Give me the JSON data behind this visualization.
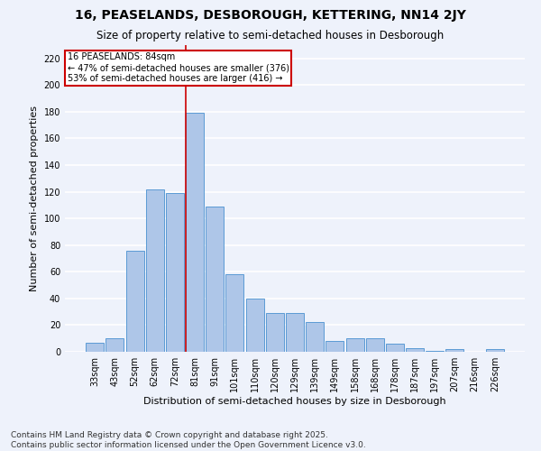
{
  "title": "16, PEASELANDS, DESBOROUGH, KETTERING, NN14 2JY",
  "subtitle": "Size of property relative to semi-detached houses in Desborough",
  "xlabel": "Distribution of semi-detached houses by size in Desborough",
  "ylabel": "Number of semi-detached properties",
  "categories": [
    "33sqm",
    "43sqm",
    "52sqm",
    "62sqm",
    "72sqm",
    "81sqm",
    "91sqm",
    "101sqm",
    "110sqm",
    "120sqm",
    "129sqm",
    "139sqm",
    "149sqm",
    "158sqm",
    "168sqm",
    "178sqm",
    "187sqm",
    "197sqm",
    "207sqm",
    "216sqm",
    "226sqm"
  ],
  "values": [
    7,
    10,
    76,
    122,
    119,
    179,
    109,
    58,
    40,
    29,
    29,
    22,
    8,
    10,
    10,
    6,
    3,
    1,
    2,
    0,
    2
  ],
  "bar_color": "#aec6e8",
  "bar_edge_color": "#5b9bd5",
  "annotation_title": "16 PEASELANDS: 84sqm",
  "annotation_line1": "← 47% of semi-detached houses are smaller (376)",
  "annotation_line2": "53% of semi-detached houses are larger (416) →",
  "annotation_box_color": "#ffffff",
  "annotation_box_edge": "#cc0000",
  "line_color": "#cc0000",
  "footer": "Contains HM Land Registry data © Crown copyright and database right 2025.\nContains public sector information licensed under the Open Government Licence v3.0.",
  "ylim": [
    0,
    230
  ],
  "yticks": [
    0,
    20,
    40,
    60,
    80,
    100,
    120,
    140,
    160,
    180,
    200,
    220
  ],
  "background_color": "#eef2fb",
  "grid_color": "#ffffff",
  "title_fontsize": 10,
  "subtitle_fontsize": 8.5,
  "axis_label_fontsize": 8,
  "tick_fontsize": 7,
  "footer_fontsize": 6.5,
  "annotation_fontsize": 7
}
